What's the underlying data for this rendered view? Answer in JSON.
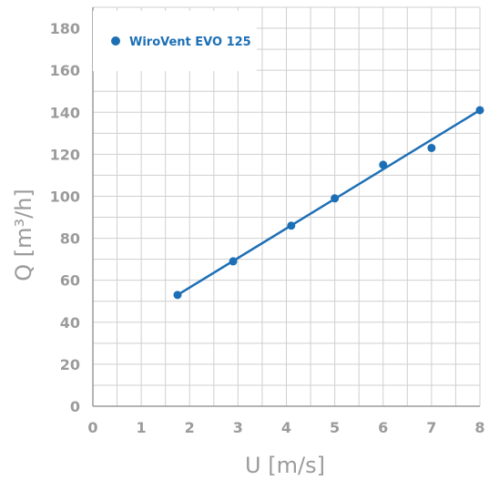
{
  "chart_data": {
    "type": "scatter",
    "xlabel": "U [m/s]",
    "ylabel": "Q [m³/h]",
    "xlim": [
      0,
      8
    ],
    "ylim": [
      0,
      190
    ],
    "xticks": [
      0,
      1,
      2,
      3,
      4,
      5,
      6,
      7,
      8
    ],
    "yticks": [
      0,
      20,
      40,
      60,
      80,
      100,
      120,
      140,
      160,
      180
    ],
    "grid": true,
    "legend_position": "top-left",
    "colors": {
      "series": "#1c6fb5",
      "grid": "#cfcfcf",
      "axis": "#9b9b9b"
    },
    "series": [
      {
        "name": "WiroVent EVO 125",
        "x": [
          1.75,
          2.9,
          4.1,
          5.0,
          6.0,
          7.0,
          8.0
        ],
        "y": [
          53,
          69,
          86,
          99,
          115,
          123,
          141
        ]
      }
    ],
    "fit_line": {
      "x": [
        1.75,
        8.0
      ],
      "y": [
        53,
        141
      ]
    }
  }
}
